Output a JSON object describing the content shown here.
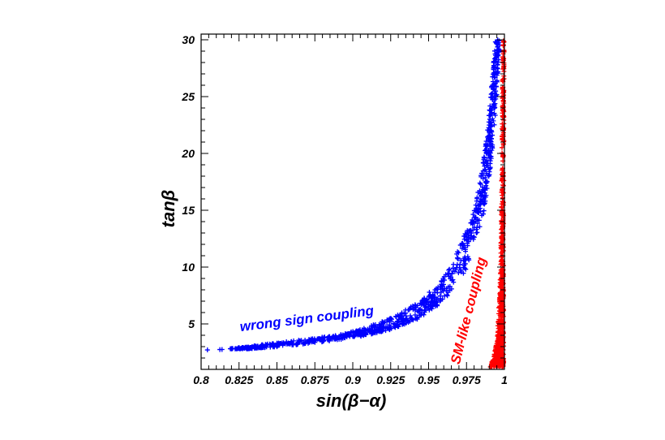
{
  "chart_data": {
    "type": "scatter",
    "xlabel": "sin(β−α)",
    "ylabel": "tanβ",
    "xlim": [
      0.8,
      1.0
    ],
    "ylim": [
      1.0,
      30.5
    ],
    "x_ticks": [
      0.8,
      0.825,
      0.85,
      0.875,
      0.9,
      0.925,
      0.95,
      0.975,
      1
    ],
    "x_tick_labels": [
      "0.8",
      "0.825",
      "0.85",
      "0.875",
      "0.9",
      "0.925",
      "0.95",
      "0.975",
      "1"
    ],
    "y_ticks": [
      5,
      10,
      15,
      20,
      25,
      30
    ],
    "y_tick_labels": [
      "5",
      "10",
      "15",
      "20",
      "25",
      "30"
    ],
    "grid": false,
    "series": [
      {
        "name": "wrong sign coupling",
        "color": "#0000ff",
        "marker": "plus",
        "band_points": [
          {
            "y": 2.7,
            "x_min": 0.801,
            "x_max": 0.805
          },
          {
            "y": 2.8,
            "x_min": 0.818,
            "x_max": 0.83
          },
          {
            "y": 3.0,
            "x_min": 0.83,
            "x_max": 0.852
          },
          {
            "y": 3.5,
            "x_min": 0.86,
            "x_max": 0.885
          },
          {
            "y": 4.0,
            "x_min": 0.89,
            "x_max": 0.91
          },
          {
            "y": 4.5,
            "x_min": 0.905,
            "x_max": 0.925
          },
          {
            "y": 5.5,
            "x_min": 0.925,
            "x_max": 0.945
          },
          {
            "y": 7.0,
            "x_min": 0.945,
            "x_max": 0.96
          },
          {
            "y": 10.0,
            "x_min": 0.965,
            "x_max": 0.976
          },
          {
            "y": 15.0,
            "x_min": 0.98,
            "x_max": 0.987
          },
          {
            "y": 20.0,
            "x_min": 0.987,
            "x_max": 0.992
          },
          {
            "y": 25.0,
            "x_min": 0.991,
            "x_max": 0.995
          },
          {
            "y": 30.0,
            "x_min": 0.994,
            "x_max": 0.997
          }
        ]
      },
      {
        "name": "SM-like coupling",
        "color": "#ff0000",
        "marker": "plus",
        "band_points": [
          {
            "y": 1.2,
            "x_min": 0.99,
            "x_max": 0.9995
          },
          {
            "y": 2.0,
            "x_min": 0.993,
            "x_max": 0.9995
          },
          {
            "y": 4.0,
            "x_min": 0.995,
            "x_max": 0.9995
          },
          {
            "y": 8.0,
            "x_min": 0.997,
            "x_max": 0.9995
          },
          {
            "y": 15.0,
            "x_min": 0.998,
            "x_max": 0.9995
          },
          {
            "y": 30.0,
            "x_min": 0.999,
            "x_max": 0.9998
          }
        ]
      }
    ],
    "annotations": [
      {
        "text": "wrong sign coupling",
        "color": "#0000ff"
      },
      {
        "text": "SM-like coupling",
        "color": "#ff0000"
      }
    ]
  }
}
